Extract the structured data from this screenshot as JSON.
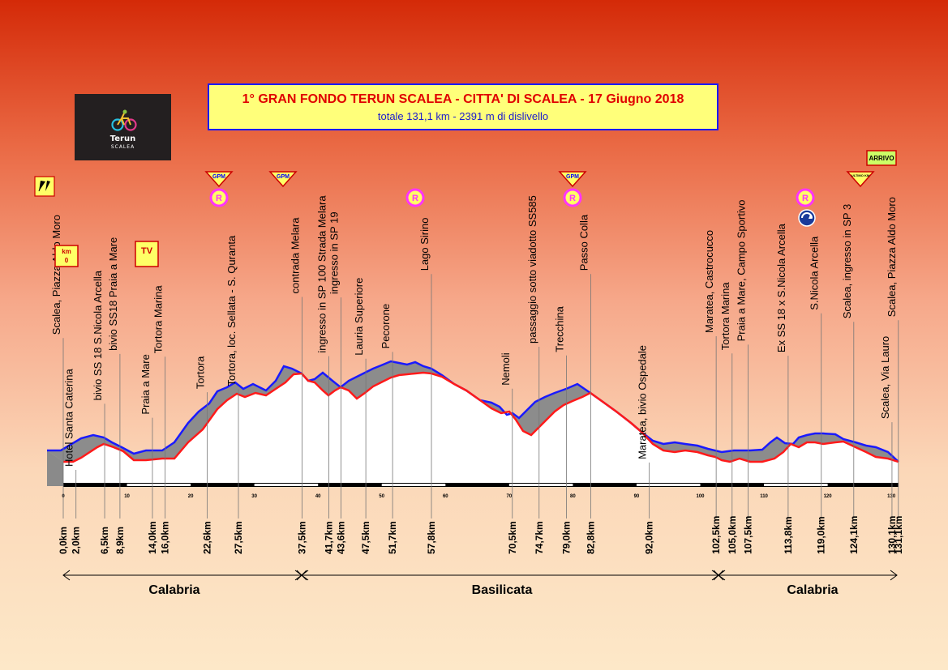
{
  "title": "1° GRAN FONDO TERUN SCALEA - CITTA' DI SCALEA - 17 Giugno 2018",
  "subtitle": "totale 131,1 km - 2391 m di dislivello",
  "logo": {
    "line1": "Terun",
    "line2": "SCALEA"
  },
  "colors": {
    "profile_blue": "#1a1aff",
    "profile_red": "#ff1a1a",
    "fill_gray": "#8c8c8c",
    "badge_yellow": "#ffff66",
    "badge_magenta": "#ff33ff"
  },
  "badges": {
    "km0": [
      "km",
      "0"
    ],
    "tv": "TV",
    "gpm": "GPM",
    "refresh": "R",
    "arrivo": "ARRIVO",
    "ultimo_km": "ULTIMO KM"
  },
  "axis_ticks": [
    "0",
    "10",
    "20",
    "30",
    "40",
    "50",
    "60",
    "70",
    "80",
    "90",
    "100",
    "110",
    "120",
    "130"
  ],
  "chart_data": {
    "type": "area",
    "title": "1° GRAN FONDO TERUN SCALEA - CITTA' DI SCALEA - 17 Giugno 2018",
    "total_km": 131.1,
    "elevation_gain_m": 2391,
    "waypoints": [
      {
        "name": "Scalea, Piazza Aldo Moro",
        "km": "0,0km"
      },
      {
        "name": "Hotel Santa Caterina",
        "km": "2,0km"
      },
      {
        "name": "bivio SS 18 S.Nicola Arcella",
        "km": "6,5km"
      },
      {
        "name": "bivio SS18 Praia a Mare",
        "km": "8,9km"
      },
      {
        "name": "Praia a Mare",
        "km": "14,0km"
      },
      {
        "name": "Tortora Marina",
        "km": "16,0km"
      },
      {
        "name": "Tortora",
        "km": "22,6km"
      },
      {
        "name": "Tortora,  loc. Sellata - S. Quranta",
        "km": "27,5km"
      },
      {
        "name": "contrada Melara",
        "km": "37,5km"
      },
      {
        "name": "ingresso in SP 100 Strada Melara",
        "km": "41,7km"
      },
      {
        "name": "ingresso in SP 19",
        "km": "43,6km"
      },
      {
        "name": "Lauria Superiore",
        "km": "47,5km"
      },
      {
        "name": "Pecorone",
        "km": "51,7km"
      },
      {
        "name": "Lago Sirino",
        "km": "57,8km"
      },
      {
        "name": "Nemoli",
        "km": "70,5km"
      },
      {
        "name": "passaggio sotto viadotto SS585",
        "km": "74,7km"
      },
      {
        "name": "Trecchina",
        "km": "79,0km"
      },
      {
        "name": "Passo Colla",
        "km": "82,8km"
      },
      {
        "name": "Maratea, bivio Ospedale",
        "km": "92,0km"
      },
      {
        "name": "Maratea, Castrocucco",
        "km": "102,5km"
      },
      {
        "name": "Tortora Marina",
        "km": "105,0km"
      },
      {
        "name": "Praia a Mare, Campo Sportivo",
        "km": "107,5km"
      },
      {
        "name": "Ex SS 18 x S.Nicola Arcella",
        "km": "113,8km"
      },
      {
        "name": "S.Nicola Arcella",
        "km": "119,0km"
      },
      {
        "name": "Scalea, ingresso in SP 3",
        "km": "124,1km"
      },
      {
        "name": "Scalea, Via Lauro",
        "km": "130,1km"
      },
      {
        "name": "Scalea, Piazza Aldo Moro",
        "km": "131,1km"
      }
    ],
    "regions": [
      "Calabria",
      "Basilicata",
      "Calabria"
    ]
  }
}
